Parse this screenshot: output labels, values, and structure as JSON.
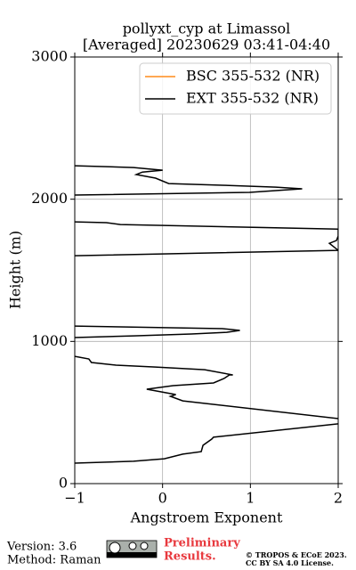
{
  "chart_data": {
    "type": "line",
    "title": [
      "pollyxt_cyp at Limassol",
      "[Averaged] 20230629 03:41-04:40"
    ],
    "x_label": "Angstroem Exponent",
    "y_label": "Height (m)",
    "xlim": [
      -1,
      2
    ],
    "ylim": [
      0,
      3000
    ],
    "xticks": [
      {
        "value": -1,
        "label": "−1"
      },
      0,
      1,
      2
    ],
    "yticks": [
      0,
      1000,
      2000,
      3000
    ],
    "grid": true,
    "legend": "upper right",
    "y": [
      144,
      157,
      175,
      207,
      225,
      269,
      313,
      326,
      420,
      450,
      582,
      614,
      626,
      664,
      689,
      708,
      739,
      764,
      764,
      801,
      820,
      833,
      852,
      877,
      895,
      null,
      1027,
      1039,
      1052,
      1064,
      1077,
      1090,
      1108,
      null,
      1603,
      1640,
      1690,
      1709,
      1741,
      1790,
      1822,
      1835,
      1841,
      null,
      2029,
      2048,
      2073,
      2085,
      2098,
      2110,
      2148,
      2173,
      2191,
      2204,
      2223,
      2235
    ],
    "series": [
      {
        "name": "BSC 355-532 (NR)",
        "color": "#ff8c1a",
        "values": [
          null,
          null,
          null,
          null,
          null,
          null,
          null,
          null,
          null,
          null,
          null,
          null,
          null,
          null,
          null,
          null,
          null,
          null,
          null,
          null,
          null,
          null,
          null,
          null,
          null,
          null,
          null,
          null,
          null,
          null,
          null,
          null,
          null,
          null,
          null,
          null,
          null,
          null,
          null,
          null,
          null,
          null,
          null,
          null,
          null,
          null,
          null,
          null,
          null,
          null,
          null,
          null,
          null,
          null,
          null,
          null
        ]
      },
      {
        "name": "EXT 355-532 (NR)",
        "color": "#000000",
        "values": [
          -1.0,
          -0.33,
          0.02,
          0.23,
          0.44,
          0.46,
          0.56,
          0.58,
          2.0,
          2.1,
          0.23,
          0.09,
          0.15,
          -0.18,
          0.12,
          0.58,
          0.7,
          0.76,
          0.8,
          0.48,
          -0.08,
          -0.53,
          -0.81,
          -0.84,
          -1.0,
          null,
          -1.0,
          -0.33,
          0.33,
          0.73,
          0.88,
          0.68,
          -1.0,
          null,
          -1.0,
          2.0,
          1.9,
          1.98,
          2.0,
          2.0,
          -0.48,
          -0.64,
          -1.0,
          null,
          -1.0,
          0.99,
          1.59,
          1.29,
          0.68,
          0.07,
          -0.08,
          -0.3,
          -0.23,
          0.0,
          -0.33,
          -1.0
        ]
      }
    ]
  },
  "footer": {
    "version": "Version: 3.6",
    "method": "Method: Raman",
    "preliminary": [
      "Preliminary",
      "Results."
    ],
    "copyright": [
      "© TROPOS & ECoE 2023.",
      "CC BY SA 4.0 License."
    ]
  }
}
